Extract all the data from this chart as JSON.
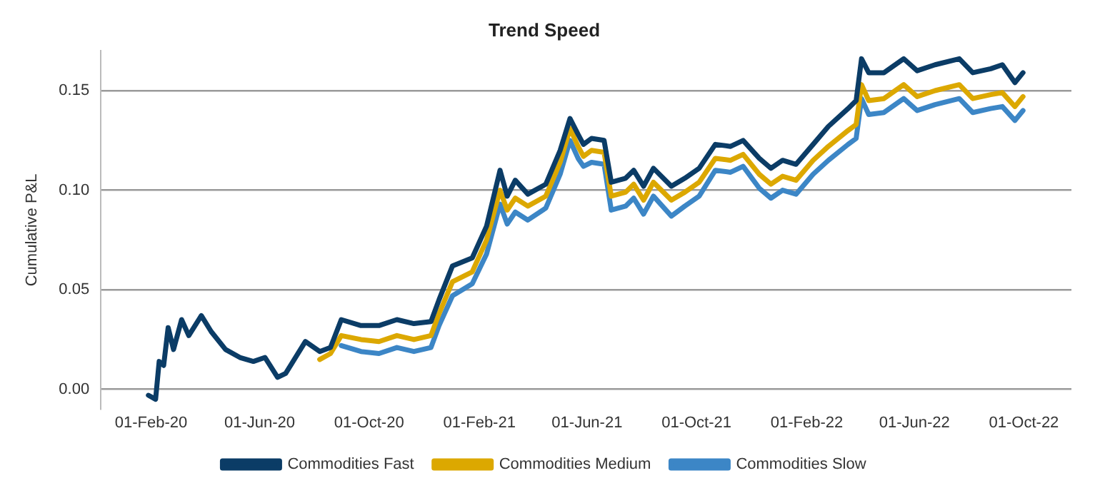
{
  "chart_data": {
    "type": "line",
    "title": "Trend Speed",
    "ylabel": "Cumulative P&L",
    "x": [
      "2020-01-29",
      "2020-02-06",
      "2020-02-10",
      "2020-02-15",
      "2020-02-20",
      "2020-02-26",
      "2020-03-06",
      "2020-03-14",
      "2020-03-28",
      "2020-04-08",
      "2020-04-24",
      "2020-05-10",
      "2020-05-25",
      "2020-06-07",
      "2020-06-21",
      "2020-06-30",
      "2020-07-22",
      "2020-08-07",
      "2020-08-19",
      "2020-08-31",
      "2020-09-22",
      "2020-10-12",
      "2020-11-01",
      "2020-11-20",
      "2020-12-09",
      "2020-12-18",
      "2021-01-02",
      "2021-01-24",
      "2021-02-09",
      "2021-02-24",
      "2021-03-04",
      "2021-03-13",
      "2021-03-27",
      "2021-04-16",
      "2021-05-02",
      "2021-05-13",
      "2021-05-22",
      "2021-05-28",
      "2021-06-06",
      "2021-06-20",
      "2021-06-28",
      "2021-07-14",
      "2021-07-23",
      "2021-08-03",
      "2021-08-14",
      "2021-09-03",
      "2021-09-18",
      "2021-10-04",
      "2021-10-22",
      "2021-11-08",
      "2021-11-22",
      "2021-12-10",
      "2021-12-23",
      "2022-01-05",
      "2022-01-20",
      "2022-02-08",
      "2022-02-25",
      "2022-03-19",
      "2022-03-28",
      "2022-04-03",
      "2022-04-11",
      "2022-04-28",
      "2022-05-20",
      "2022-06-04",
      "2022-06-24",
      "2022-07-21",
      "2022-08-05",
      "2022-08-25",
      "2022-09-07",
      "2022-09-21",
      "2022-09-30"
    ],
    "series": [
      {
        "name": "Commodities Fast",
        "color": "#0b3c66",
        "values": [
          -0.003,
          -0.005,
          0.014,
          0.012,
          0.031,
          0.02,
          0.035,
          0.027,
          0.037,
          0.029,
          0.02,
          0.016,
          0.014,
          0.016,
          0.006,
          0.008,
          0.024,
          0.019,
          0.021,
          0.035,
          0.032,
          0.032,
          0.035,
          0.033,
          0.034,
          0.045,
          0.062,
          0.066,
          0.082,
          0.11,
          0.097,
          0.105,
          0.098,
          0.103,
          0.12,
          0.136,
          0.128,
          0.123,
          0.126,
          0.125,
          0.104,
          0.106,
          0.11,
          0.102,
          0.111,
          0.102,
          0.106,
          0.111,
          0.123,
          0.122,
          0.125,
          0.116,
          0.111,
          0.115,
          0.113,
          0.123,
          0.132,
          0.141,
          0.145,
          0.166,
          0.159,
          0.159,
          0.166,
          0.16,
          0.163,
          0.166,
          0.159,
          0.161,
          0.163,
          0.154,
          0.159
        ]
      },
      {
        "name": "Commodities Medium",
        "color": "#dca800",
        "values": [
          null,
          null,
          null,
          null,
          null,
          null,
          null,
          null,
          null,
          null,
          null,
          null,
          null,
          null,
          null,
          null,
          null,
          0.015,
          0.018,
          0.027,
          0.025,
          0.024,
          0.027,
          0.025,
          0.027,
          0.038,
          0.054,
          0.059,
          0.075,
          0.1,
          0.09,
          0.096,
          0.092,
          0.097,
          0.114,
          0.131,
          0.122,
          0.117,
          0.12,
          0.119,
          0.097,
          0.099,
          0.103,
          0.095,
          0.104,
          0.095,
          0.099,
          0.104,
          0.116,
          0.115,
          0.118,
          0.108,
          0.103,
          0.107,
          0.105,
          0.115,
          0.122,
          0.13,
          0.133,
          0.153,
          0.145,
          0.146,
          0.153,
          0.147,
          0.15,
          0.153,
          0.146,
          0.148,
          0.149,
          0.142,
          0.147
        ]
      },
      {
        "name": "Commodities Slow",
        "color": "#3c86c6",
        "values": [
          null,
          null,
          null,
          null,
          null,
          null,
          null,
          null,
          null,
          null,
          null,
          null,
          null,
          null,
          null,
          null,
          null,
          null,
          null,
          0.022,
          0.019,
          0.018,
          0.021,
          0.019,
          0.021,
          0.032,
          0.047,
          0.053,
          0.068,
          0.093,
          0.083,
          0.089,
          0.085,
          0.091,
          0.108,
          0.125,
          0.116,
          0.112,
          0.114,
          0.113,
          0.09,
          0.092,
          0.096,
          0.088,
          0.097,
          0.087,
          0.092,
          0.097,
          0.11,
          0.109,
          0.112,
          0.101,
          0.096,
          0.1,
          0.098,
          0.108,
          0.115,
          0.123,
          0.126,
          0.146,
          0.138,
          0.139,
          0.146,
          0.14,
          0.143,
          0.146,
          0.139,
          0.141,
          0.142,
          0.135,
          0.14
        ]
      }
    ],
    "xlim": [
      "2019-12-07",
      "2022-11-23"
    ],
    "xticks": [
      {
        "value": "2020-02-01",
        "label": "01-Feb-20"
      },
      {
        "value": "2020-06-01",
        "label": "01-Jun-20"
      },
      {
        "value": "2020-10-01",
        "label": "01-Oct-20"
      },
      {
        "value": "2021-02-01",
        "label": "01-Feb-21"
      },
      {
        "value": "2021-06-01",
        "label": "01-Jun-21"
      },
      {
        "value": "2021-10-01",
        "label": "01-Oct-21"
      },
      {
        "value": "2022-02-01",
        "label": "01-Feb-22"
      },
      {
        "value": "2022-06-01",
        "label": "01-Jun-22"
      },
      {
        "value": "2022-10-01",
        "label": "01-Oct-22"
      }
    ],
    "ylim": [
      -0.01,
      0.17
    ],
    "yticks": [
      {
        "value": 0,
        "label": "0.00"
      },
      {
        "value": 0.05,
        "label": "0.05"
      },
      {
        "value": 0.1,
        "label": "0.10"
      },
      {
        "value": 0.15,
        "label": "0.15"
      }
    ],
    "grid": "y",
    "legend": "bottom",
    "marker": "none",
    "line_style": "solid"
  }
}
